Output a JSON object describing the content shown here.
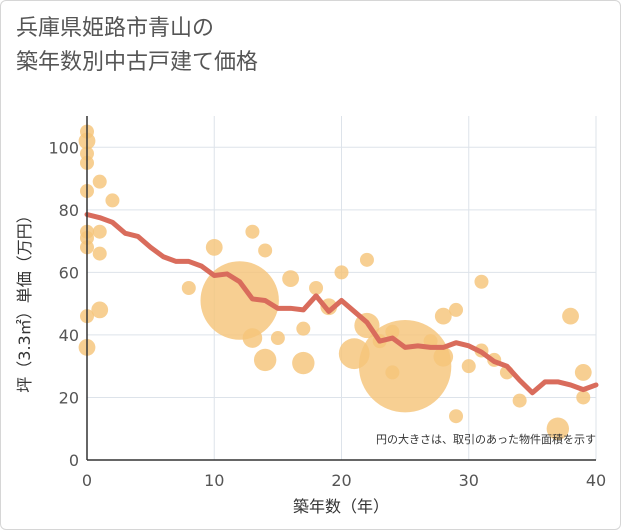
{
  "title": "兵庫県姫路市青山の\n築年数別中古戸建て価格",
  "note": "円の大きさは、取引のあった物件面積を示す",
  "colors": {
    "bubble": "#f5c57a",
    "line": "#d96c5c",
    "grid": "#dde3ea",
    "tick_text": "#555555"
  },
  "chart_data": {
    "type": "scatter",
    "xlabel": "築年数（年）",
    "ylabel": "坪（3.3㎡）単価（万円）",
    "xlim": [
      0,
      40
    ],
    "ylim": [
      0,
      110
    ],
    "xticks": [
      0,
      10,
      20,
      30,
      40
    ],
    "yticks": [
      0,
      20,
      40,
      60,
      80,
      100
    ],
    "grid": true,
    "bubbles": [
      {
        "x": 0,
        "y": 105,
        "size": 1
      },
      {
        "x": 0,
        "y": 102,
        "size": 1.2
      },
      {
        "x": 0,
        "y": 98,
        "size": 1
      },
      {
        "x": 0,
        "y": 95,
        "size": 1
      },
      {
        "x": 0,
        "y": 86,
        "size": 1
      },
      {
        "x": 0,
        "y": 73,
        "size": 1
      },
      {
        "x": 0,
        "y": 71,
        "size": 1
      },
      {
        "x": 0,
        "y": 68,
        "size": 1
      },
      {
        "x": 0,
        "y": 46,
        "size": 1
      },
      {
        "x": 0,
        "y": 36,
        "size": 1.2
      },
      {
        "x": 1,
        "y": 89,
        "size": 1
      },
      {
        "x": 1,
        "y": 73,
        "size": 1
      },
      {
        "x": 1,
        "y": 66,
        "size": 1
      },
      {
        "x": 1,
        "y": 48,
        "size": 1.2
      },
      {
        "x": 2,
        "y": 83,
        "size": 1
      },
      {
        "x": 8,
        "y": 55,
        "size": 1
      },
      {
        "x": 10,
        "y": 68,
        "size": 1.2
      },
      {
        "x": 12,
        "y": 51,
        "size": 5.6
      },
      {
        "x": 13,
        "y": 73,
        "size": 1
      },
      {
        "x": 13,
        "y": 39,
        "size": 1.4
      },
      {
        "x": 14,
        "y": 67,
        "size": 1
      },
      {
        "x": 14,
        "y": 32,
        "size": 1.6
      },
      {
        "x": 15,
        "y": 39,
        "size": 1
      },
      {
        "x": 16,
        "y": 58,
        "size": 1.2
      },
      {
        "x": 17,
        "y": 42,
        "size": 1
      },
      {
        "x": 17,
        "y": 31,
        "size": 1.6
      },
      {
        "x": 18,
        "y": 55,
        "size": 1
      },
      {
        "x": 19,
        "y": 49,
        "size": 1.2
      },
      {
        "x": 20,
        "y": 60,
        "size": 1
      },
      {
        "x": 21,
        "y": 34,
        "size": 2.2
      },
      {
        "x": 22,
        "y": 64,
        "size": 1
      },
      {
        "x": 22,
        "y": 43,
        "size": 1.8
      },
      {
        "x": 23,
        "y": 38,
        "size": 1
      },
      {
        "x": 24,
        "y": 41,
        "size": 1
      },
      {
        "x": 25,
        "y": 30,
        "size": 6.6
      },
      {
        "x": 24,
        "y": 28,
        "size": 1
      },
      {
        "x": 27,
        "y": 38,
        "size": 1
      },
      {
        "x": 28,
        "y": 46,
        "size": 1.2
      },
      {
        "x": 28,
        "y": 33,
        "size": 1.4
      },
      {
        "x": 29,
        "y": 48,
        "size": 1
      },
      {
        "x": 29,
        "y": 14,
        "size": 1
      },
      {
        "x": 30,
        "y": 30,
        "size": 1
      },
      {
        "x": 31,
        "y": 57,
        "size": 1
      },
      {
        "x": 31,
        "y": 35,
        "size": 1
      },
      {
        "x": 32,
        "y": 32,
        "size": 1
      },
      {
        "x": 33,
        "y": 28,
        "size": 1
      },
      {
        "x": 34,
        "y": 19,
        "size": 1
      },
      {
        "x": 37,
        "y": 10,
        "size": 1.6
      },
      {
        "x": 38,
        "y": 46,
        "size": 1.2
      },
      {
        "x": 39,
        "y": 28,
        "size": 1.2
      },
      {
        "x": 39,
        "y": 20,
        "size": 1
      }
    ],
    "trend": {
      "x": [
        0,
        1,
        2,
        3,
        4,
        5,
        6,
        7,
        8,
        9,
        10,
        11,
        12,
        13,
        14,
        15,
        16,
        17,
        18,
        19,
        20,
        21,
        22,
        23,
        24,
        25,
        26,
        27,
        28,
        29,
        30,
        31,
        32,
        33,
        34,
        35,
        36,
        37,
        38,
        39,
        40
      ],
      "y": [
        78.5,
        77.5,
        76,
        72.5,
        71.5,
        68,
        65,
        63.5,
        63.5,
        62,
        59,
        59.5,
        57,
        51.5,
        51,
        48.5,
        48.5,
        48,
        52.5,
        47.5,
        51,
        47.5,
        44,
        38,
        39,
        36,
        36.5,
        36,
        36,
        37.5,
        36.5,
        34.5,
        31.5,
        30,
        25.5,
        21.5,
        25,
        25,
        24,
        22.5,
        24
      ]
    }
  }
}
